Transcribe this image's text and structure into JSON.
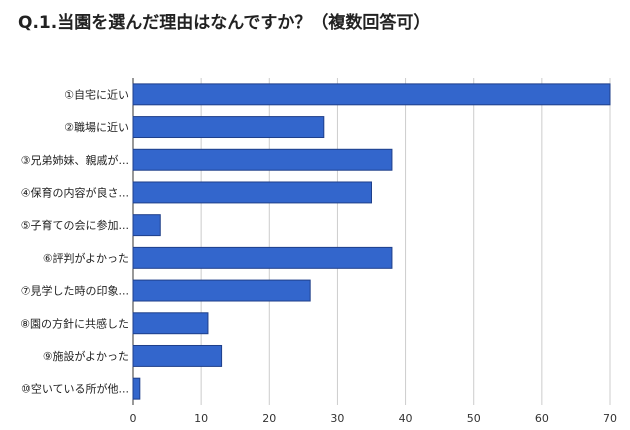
{
  "chart_data": {
    "type": "bar",
    "orientation": "horizontal",
    "title": "Q.1.当園を選んだ理由はなんですか？（複数回答可）",
    "categories": [
      "①自宅に近い",
      "②職場に近い",
      "③兄弟姉妹、親戚が...",
      "④保育の内容が良さ...",
      "⑤子育ての会に参加...",
      "⑥評判がよかった",
      "⑦見学した時の印象...",
      "⑧園の方針に共感した",
      "⑨施設がよかった",
      "⑩空いている所が他..."
    ],
    "values": [
      70,
      28,
      38,
      35,
      4,
      38,
      26,
      11,
      13,
      1
    ],
    "xlim": [
      0,
      70
    ],
    "xticks": [
      0,
      10,
      20,
      30,
      40,
      50,
      60,
      70
    ],
    "grid": true,
    "legend": "none",
    "bar_color": "#3366cc",
    "bar_border": "#1f3f8a",
    "grid_color": "#cccccc"
  }
}
